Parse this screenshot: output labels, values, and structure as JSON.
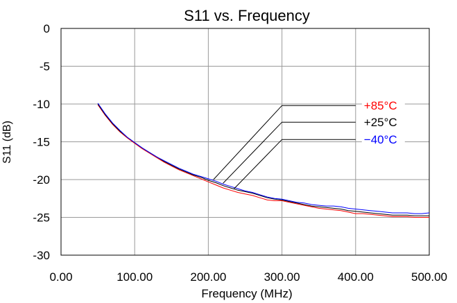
{
  "chart_data": {
    "type": "line",
    "title": "S11 vs. Frequency",
    "xlabel": "Frequency (MHz)",
    "ylabel": "S11 (dB)",
    "xlim": [
      0,
      500
    ],
    "ylim": [
      -30,
      0
    ],
    "x_ticks": [
      0,
      100,
      200,
      300,
      400,
      500
    ],
    "x_tick_labels": [
      "0.00",
      "100.00",
      "200.00",
      "300.00",
      "400.00",
      "500.00"
    ],
    "y_ticks": [
      0,
      -5,
      -10,
      -15,
      -20,
      -25,
      -30
    ],
    "y_tick_labels": [
      "0",
      "-5",
      "-10",
      "-15",
      "-20",
      "-25",
      "-30"
    ],
    "grid": true,
    "x": [
      50,
      60,
      70,
      80,
      90,
      100,
      110,
      120,
      130,
      140,
      150,
      160,
      170,
      180,
      190,
      200,
      210,
      220,
      230,
      240,
      250,
      260,
      270,
      280,
      290,
      300,
      310,
      320,
      330,
      340,
      350,
      360,
      370,
      380,
      390,
      400,
      410,
      420,
      430,
      440,
      450,
      460,
      470,
      480,
      490,
      500
    ],
    "series": [
      {
        "name": "+85°C",
        "color": "#ff0000",
        "values": [
          -10.1,
          -11.5,
          -12.7,
          -13.7,
          -14.5,
          -15.2,
          -15.9,
          -16.5,
          -17.1,
          -17.7,
          -18.2,
          -18.7,
          -19.1,
          -19.5,
          -19.9,
          -20.3,
          -20.7,
          -21.1,
          -21.4,
          -21.7,
          -21.9,
          -22.1,
          -22.4,
          -22.7,
          -22.8,
          -22.8,
          -23.0,
          -23.2,
          -23.4,
          -23.6,
          -23.8,
          -23.9,
          -24.0,
          -24.1,
          -24.3,
          -24.5,
          -24.5,
          -24.6,
          -24.7,
          -24.8,
          -24.9,
          -24.9,
          -24.9,
          -25.0,
          -25.0,
          -25.0
        ]
      },
      {
        "name": "+25°C",
        "color": "#000000",
        "values": [
          -10.0,
          -11.4,
          -12.6,
          -13.6,
          -14.4,
          -15.1,
          -15.8,
          -16.4,
          -17.0,
          -17.6,
          -18.1,
          -18.6,
          -19.0,
          -19.4,
          -19.7,
          -20.1,
          -20.4,
          -20.8,
          -21.1,
          -21.4,
          -21.6,
          -21.8,
          -22.1,
          -22.4,
          -22.6,
          -22.7,
          -22.9,
          -23.1,
          -23.3,
          -23.5,
          -23.6,
          -23.7,
          -23.8,
          -23.9,
          -24.1,
          -24.2,
          -24.3,
          -24.4,
          -24.5,
          -24.6,
          -24.7,
          -24.7,
          -24.7,
          -24.8,
          -24.8,
          -24.8
        ]
      },
      {
        "name": "−40°C",
        "color": "#0000ff",
        "values": [
          -9.9,
          -11.3,
          -12.5,
          -13.5,
          -14.4,
          -15.1,
          -15.8,
          -16.4,
          -17.0,
          -17.5,
          -18.0,
          -18.5,
          -18.9,
          -19.3,
          -19.6,
          -19.9,
          -20.2,
          -20.6,
          -20.9,
          -21.2,
          -21.5,
          -21.7,
          -22.0,
          -22.3,
          -22.5,
          -22.6,
          -22.8,
          -23.0,
          -23.1,
          -23.3,
          -23.4,
          -23.5,
          -23.5,
          -23.6,
          -23.8,
          -23.9,
          -24.0,
          -24.1,
          -24.2,
          -24.3,
          -24.4,
          -24.4,
          -24.4,
          -24.5,
          -24.5,
          -24.4
        ]
      }
    ],
    "annotations": [
      {
        "text": "+85°C",
        "color": "#ff0000",
        "leader": [
          [
            207,
            -20.0
          ],
          [
            300,
            -10.2
          ],
          [
            400,
            -10.2
          ]
        ]
      },
      {
        "text": "+25°C",
        "color": "#000000",
        "leader": [
          [
            220,
            -20.5
          ],
          [
            300,
            -12.4
          ],
          [
            400,
            -12.4
          ]
        ]
      },
      {
        "text": "−40°C",
        "color": "#0000ff",
        "leader": [
          [
            235,
            -21.2
          ],
          [
            300,
            -14.7
          ],
          [
            400,
            -14.7
          ]
        ]
      }
    ]
  }
}
